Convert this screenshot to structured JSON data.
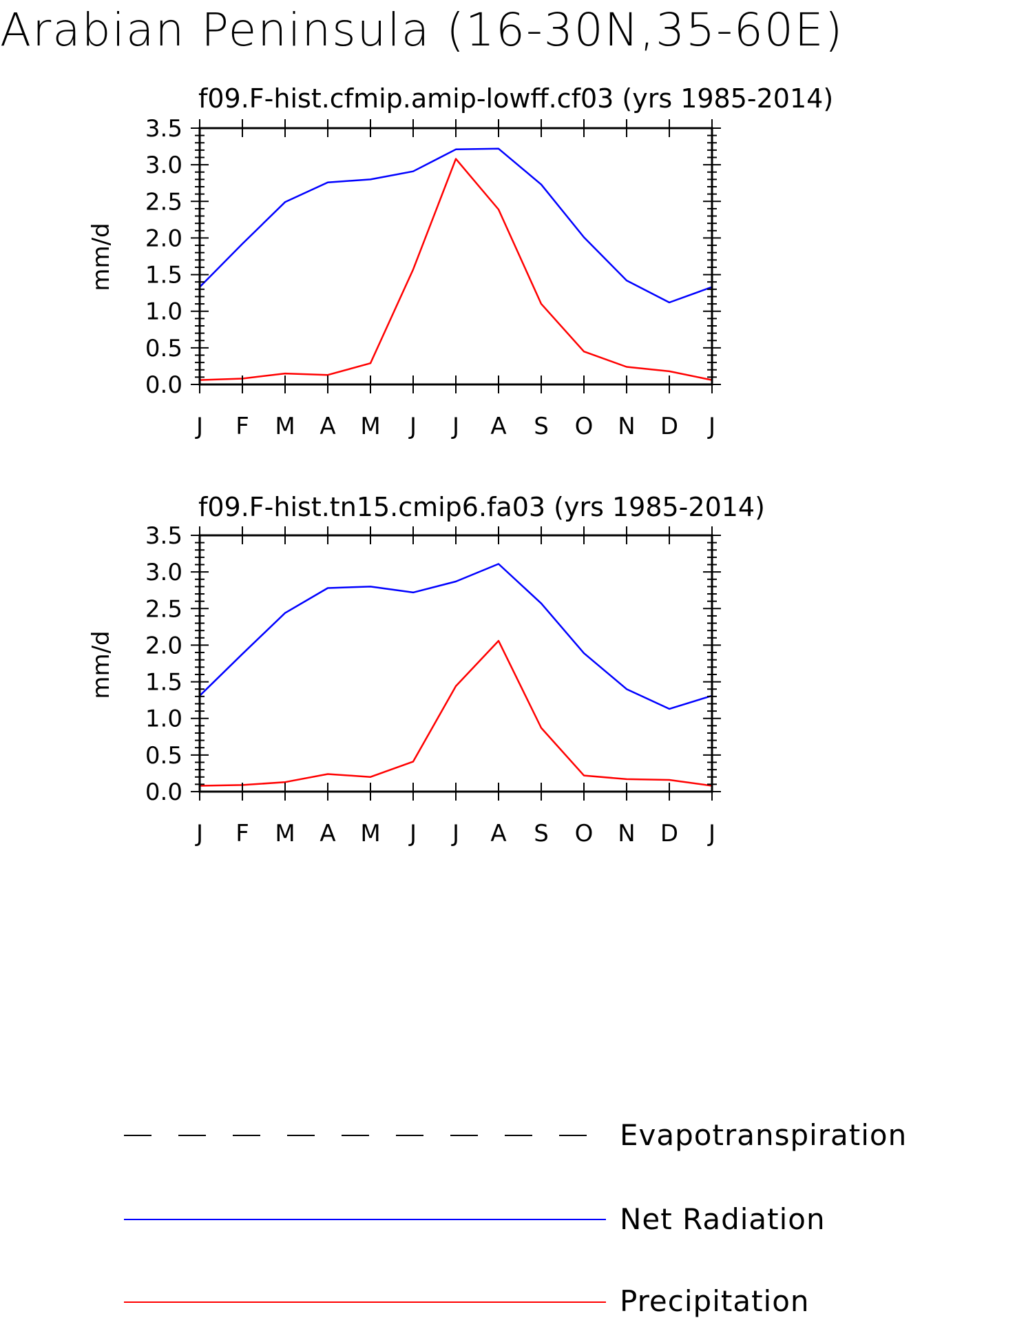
{
  "figure_title": "Arabian Peninsula (16-30N,35-60E)",
  "colors": {
    "evapotranspiration": "#000000",
    "net_radiation": "#0000ff",
    "precipitation": "#ff0000"
  },
  "legend": [
    {
      "label": "Evapotranspiration",
      "style": "dashed",
      "color": "#000000"
    },
    {
      "label": "Net Radiation",
      "style": "solid",
      "color": "#0000ff"
    },
    {
      "label": "Precipitation",
      "style": "solid",
      "color": "#ff0000"
    }
  ],
  "chart_data": [
    {
      "type": "line",
      "title": "f09.F-hist.cfmip.amip-lowff.cf03 (yrs 1985-2014)",
      "ylabel": "mm/d",
      "xlabel": "",
      "categories": [
        "J",
        "F",
        "M",
        "A",
        "M",
        "J",
        "J",
        "A",
        "S",
        "O",
        "N",
        "D",
        "J"
      ],
      "ylim": [
        0,
        3.5
      ],
      "yticks": [
        "0.0",
        "0.5",
        "1.0",
        "1.5",
        "2.0",
        "2.5",
        "3.0",
        "3.5"
      ],
      "series": [
        {
          "name": "Net Radiation",
          "color": "#0000ff",
          "values": [
            1.33,
            1.92,
            2.49,
            2.76,
            2.8,
            2.91,
            3.21,
            3.22,
            2.73,
            2.01,
            1.42,
            1.12,
            1.33
          ]
        },
        {
          "name": "Precipitation",
          "color": "#ff0000",
          "values": [
            0.06,
            0.08,
            0.15,
            0.13,
            0.29,
            1.57,
            3.08,
            2.39,
            1.1,
            0.45,
            0.24,
            0.18,
            0.06
          ]
        }
      ]
    },
    {
      "type": "line",
      "title": "f09.F-hist.tn15.cmip6.fa03 (yrs 1985-2014)",
      "ylabel": "mm/d",
      "xlabel": "",
      "categories": [
        "J",
        "F",
        "M",
        "A",
        "M",
        "J",
        "J",
        "A",
        "S",
        "O",
        "N",
        "D",
        "J"
      ],
      "ylim": [
        0,
        3.5
      ],
      "yticks": [
        "0.0",
        "0.5",
        "1.0",
        "1.5",
        "2.0",
        "2.5",
        "3.0",
        "3.5"
      ],
      "series": [
        {
          "name": "Net Radiation",
          "color": "#0000ff",
          "values": [
            1.31,
            1.88,
            2.44,
            2.78,
            2.8,
            2.72,
            2.87,
            3.11,
            2.57,
            1.89,
            1.4,
            1.13,
            1.31
          ]
        },
        {
          "name": "Precipitation",
          "color": "#ff0000",
          "values": [
            0.08,
            0.09,
            0.13,
            0.24,
            0.2,
            0.41,
            1.44,
            2.06,
            0.87,
            0.22,
            0.17,
            0.16,
            0.08
          ]
        }
      ]
    }
  ]
}
